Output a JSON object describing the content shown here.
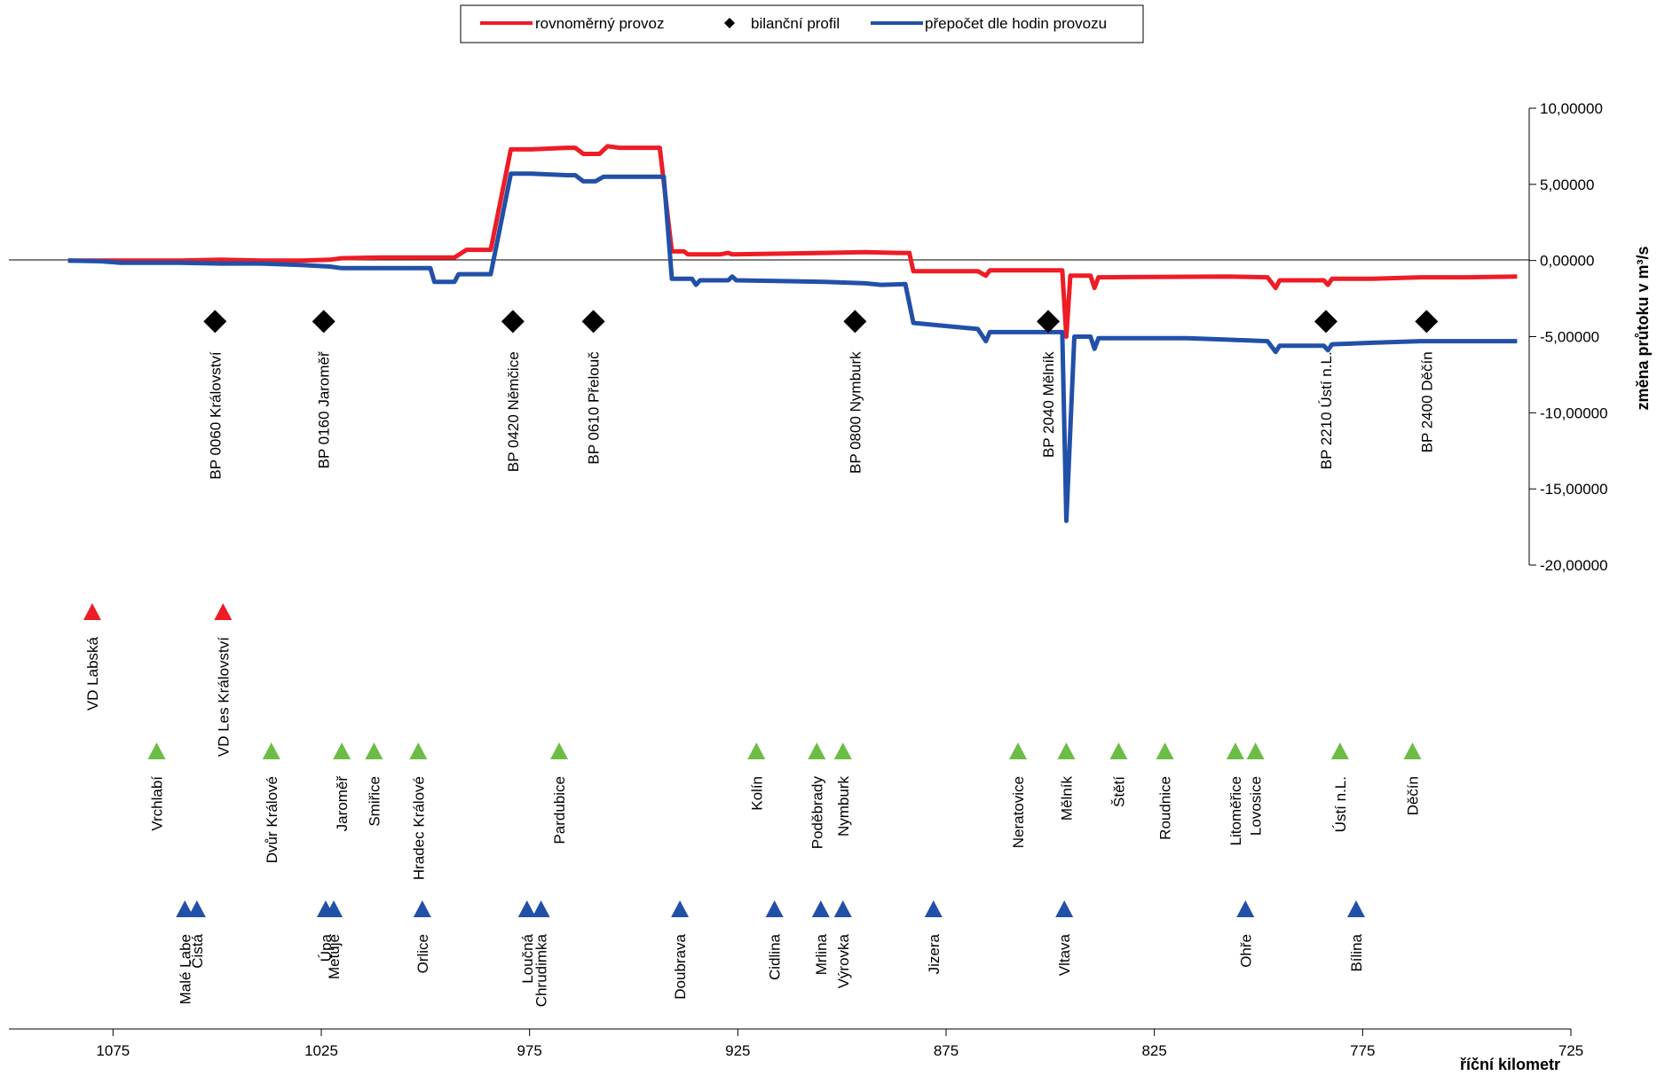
{
  "chart_data": {
    "type": "line",
    "title": "",
    "xlabel": "říční kilometr",
    "ylabel": "změna průtoku v m³/s",
    "xlim": [
      1095,
      725
    ],
    "ylim": [
      -20,
      10
    ],
    "x_axis_reversed": true,
    "x_ticks": [
      1075,
      1025,
      975,
      925,
      875,
      825,
      775,
      725
    ],
    "y_ticks": [
      10,
      5,
      0,
      -5,
      -10,
      -15,
      -20
    ],
    "y_tick_labels": [
      "10,00000",
      "5,00000",
      "0,00000",
      "-5,00000",
      "-10,00000",
      "-15,00000",
      "-20,00000"
    ],
    "y_axis_position": "right",
    "grid": false,
    "legend_position": "top",
    "legend": [
      {
        "label": "rovnoměrný provoz",
        "color": "#ee1c25",
        "kind": "line"
      },
      {
        "label": "bilanční profil",
        "color": "#000000",
        "kind": "diamond"
      },
      {
        "label": "přepočet dle hodin provozu",
        "color": "#2150a8",
        "kind": "line"
      }
    ],
    "series": [
      {
        "name": "rovnoměrný provoz",
        "color": "#ee1c25",
        "points": [
          [
            1088,
            0
          ],
          [
            1060,
            0
          ],
          [
            1050,
            0.05
          ],
          [
            1040,
            0
          ],
          [
            1030,
            0
          ],
          [
            1023,
            0.05
          ],
          [
            1020,
            0.15
          ],
          [
            1010,
            0.2
          ],
          [
            999,
            0.2
          ],
          [
            995,
            0.2
          ],
          [
            992,
            0.2
          ],
          [
            989,
            0.7
          ],
          [
            983,
            0.7
          ],
          [
            978,
            7.3
          ],
          [
            973,
            7.3
          ],
          [
            964,
            7.4
          ],
          [
            962,
            7.4
          ],
          [
            960,
            7.0
          ],
          [
            956,
            7.0
          ],
          [
            954,
            7.5
          ],
          [
            951,
            7.4
          ],
          [
            941,
            7.4
          ],
          [
            938,
            0.6
          ],
          [
            935,
            0.6
          ],
          [
            934,
            0.4
          ],
          [
            926,
            0.4
          ],
          [
            924,
            0.5
          ],
          [
            923,
            0.4
          ],
          [
            900,
            0.5
          ],
          [
            890,
            0.55
          ],
          [
            882,
            0.5
          ],
          [
            879,
            0.5
          ],
          [
            878,
            -0.7
          ],
          [
            862,
            -0.7
          ],
          [
            860,
            -1.0
          ],
          [
            859,
            -0.65
          ],
          [
            844,
            -0.65
          ],
          [
            841,
            -0.65
          ],
          [
            840,
            -5.0
          ],
          [
            839,
            -1.0
          ],
          [
            834,
            -1.0
          ],
          [
            833,
            -1.8
          ],
          [
            832,
            -1.1
          ],
          [
            800,
            -1.05
          ],
          [
            790,
            -1.1
          ],
          [
            788,
            -1.8
          ],
          [
            787,
            -1.3
          ],
          [
            776,
            -1.3
          ],
          [
            775,
            -1.6
          ],
          [
            774,
            -1.2
          ],
          [
            764,
            -1.2
          ],
          [
            752,
            -1.1
          ],
          [
            741,
            -1.1
          ],
          [
            728,
            -1.05
          ]
        ]
      },
      {
        "name": "přepočet dle hodin provozu",
        "color": "#2150a8",
        "points": [
          [
            1088,
            0
          ],
          [
            1080,
            -0.05
          ],
          [
            1075,
            -0.15
          ],
          [
            1060,
            -0.15
          ],
          [
            1050,
            -0.2
          ],
          [
            1040,
            -0.2
          ],
          [
            1030,
            -0.3
          ],
          [
            1023,
            -0.4
          ],
          [
            1020,
            -0.5
          ],
          [
            1005,
            -0.5
          ],
          [
            998,
            -0.5
          ],
          [
            997,
            -1.4
          ],
          [
            992,
            -1.4
          ],
          [
            991,
            -0.9
          ],
          [
            989,
            -0.9
          ],
          [
            983,
            -0.9
          ],
          [
            978,
            5.7
          ],
          [
            973,
            5.7
          ],
          [
            964,
            5.6
          ],
          [
            962,
            5.6
          ],
          [
            960,
            5.2
          ],
          [
            957,
            5.2
          ],
          [
            955,
            5.5
          ],
          [
            951,
            5.5
          ],
          [
            940,
            5.5
          ],
          [
            938,
            -1.2
          ],
          [
            933,
            -1.2
          ],
          [
            932,
            -1.6
          ],
          [
            931,
            -1.3
          ],
          [
            924,
            -1.3
          ],
          [
            923,
            -1.05
          ],
          [
            922,
            -1.3
          ],
          [
            900,
            -1.4
          ],
          [
            890,
            -1.5
          ],
          [
            886,
            -1.6
          ],
          [
            880,
            -1.55
          ],
          [
            878,
            -4.1
          ],
          [
            870,
            -4.3
          ],
          [
            862,
            -4.5
          ],
          [
            860,
            -5.3
          ],
          [
            859,
            -4.7
          ],
          [
            841,
            -4.7
          ],
          [
            840,
            -17.1
          ],
          [
            838,
            -5.0
          ],
          [
            834,
            -5.0
          ],
          [
            833,
            -5.8
          ],
          [
            832,
            -5.1
          ],
          [
            810,
            -5.1
          ],
          [
            800,
            -5.2
          ],
          [
            790,
            -5.3
          ],
          [
            788,
            -6.0
          ],
          [
            787,
            -5.6
          ],
          [
            776,
            -5.6
          ],
          [
            775,
            -5.9
          ],
          [
            774,
            -5.5
          ],
          [
            764,
            -5.4
          ],
          [
            752,
            -5.3
          ],
          [
            741,
            -5.3
          ],
          [
            728,
            -5.3
          ]
        ]
      }
    ],
    "balance_profiles": [
      {
        "label": "BP 0060 Království",
        "km": 1051.5,
        "y": -4
      },
      {
        "label": "BP 0160 Jaroměř",
        "km": 1024.5,
        "y": -4
      },
      {
        "label": "BP 0420 Němčice",
        "km": 977.5,
        "y": -4
      },
      {
        "label": "BP 0610 Přelouč",
        "km": 957.5,
        "y": -4
      },
      {
        "label": "BP 0800 Nymburk",
        "km": 892.5,
        "y": -4
      },
      {
        "label": "BP 2040 Mělník",
        "km": 844.5,
        "y": -4
      },
      {
        "label": "BP 2210 Ústí n.L.",
        "km": 775.5,
        "y": -4
      },
      {
        "label": "BP 2400 Děčín",
        "km": 750.5,
        "y": -4
      }
    ],
    "reservoirs": [
      {
        "label": "VD Labská",
        "km": 1082
      },
      {
        "label": "VD Les Království",
        "km": 1049.5
      }
    ],
    "towns": [
      {
        "label": "Vrchlabí",
        "km": 1066
      },
      {
        "label": "Dvůr Králové",
        "km": 1037.5
      },
      {
        "label": "Jaroměř",
        "km": 1020
      },
      {
        "label": "Smiřice",
        "km": 1012
      },
      {
        "label": "Hradec Králové",
        "km": 1001
      },
      {
        "label": "Pardubice",
        "km": 966
      },
      {
        "label": "Kolín",
        "km": 917
      },
      {
        "label": "Poděbrady",
        "km": 902
      },
      {
        "label": "Nymburk",
        "km": 895.5
      },
      {
        "label": "Neratovice",
        "km": 852
      },
      {
        "label": "Mělník",
        "km": 840
      },
      {
        "label": "Štětí",
        "km": 827
      },
      {
        "label": "Roudnice",
        "km": 815.5
      },
      {
        "label": "Litoměřice",
        "km": 798
      },
      {
        "label": "Lovosice",
        "km": 793
      },
      {
        "label": "Ústí n.L.",
        "km": 772
      },
      {
        "label": "Děčín",
        "km": 754
      }
    ],
    "tributaries": [
      {
        "label": "Malé Labe",
        "km": 1059
      },
      {
        "label": "Čistá",
        "km": 1056
      },
      {
        "label": "Úpa",
        "km": 1024
      },
      {
        "label": "Metuje",
        "km": 1022
      },
      {
        "label": "Orlice",
        "km": 1000
      },
      {
        "label": "Loučná",
        "km": 974
      },
      {
        "label": "Chrudimka",
        "km": 970.5
      },
      {
        "label": "Doubrava",
        "km": 936
      },
      {
        "label": "Cidlina",
        "km": 912.5
      },
      {
        "label": "Mrlina",
        "km": 901
      },
      {
        "label": "Výrovka",
        "km": 895.5
      },
      {
        "label": "Jizera",
        "km": 873
      },
      {
        "label": "Vltava",
        "km": 840.5
      },
      {
        "label": "Ohře",
        "km": 795.5
      },
      {
        "label": "Bílina",
        "km": 768
      }
    ],
    "marker_colors": {
      "reservoir": "#ee1c25",
      "town": "#6cbd45",
      "tributary": "#2150a8",
      "profile": "#000000"
    }
  }
}
